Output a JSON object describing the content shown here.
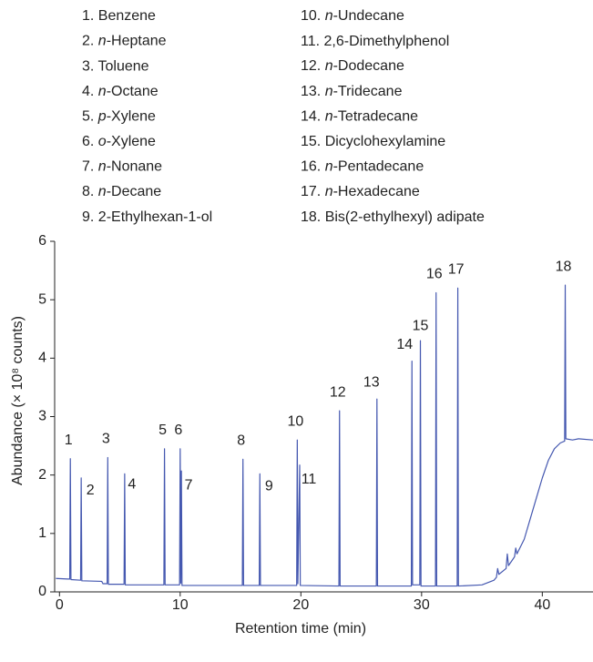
{
  "chart_data": {
    "type": "line",
    "x_label": "Retention time (min)",
    "y_label": "Abundance (× 10⁸ counts)",
    "xlim": [
      -0.4,
      44.2
    ],
    "ylim": [
      0,
      6
    ],
    "xticks": [
      0,
      10,
      20,
      30,
      40
    ],
    "yticks": [
      0,
      1,
      2,
      3,
      4,
      5,
      6
    ],
    "compounds": [
      "1. Benzene",
      "2. n-Heptane",
      "3. Toluene",
      "4. n-Octane",
      "5. p-Xylene",
      "6. o-Xylene",
      "7. n-Nonane",
      "8. n-Decane",
      "9. 2-Ethylhexan-1-ol",
      "10. n-Undecane",
      "11. 2,6-Dimethylphenol",
      "12. n-Dodecane",
      "13. n-Tridecane",
      "14. n-Tetradecane",
      "15. Dicyclohexylamine",
      "16. n-Pentadecane",
      "17. n-Hexadecane",
      "18. Bis(2-ethylhexyl) adipate"
    ],
    "peaks": [
      {
        "text": "1",
        "x": 0.9,
        "y": 2.28
      },
      {
        "text": "2",
        "x": 1.8,
        "y": 1.95
      },
      {
        "text": "3",
        "x": 4.0,
        "y": 2.3
      },
      {
        "text": "4",
        "x": 5.4,
        "y": 2.02
      },
      {
        "text": "5",
        "x": 8.7,
        "y": 2.45
      },
      {
        "text": "6",
        "x": 10.0,
        "y": 2.45
      },
      {
        "text": "7",
        "x": 10.1,
        "y": 2.07
      },
      {
        "text": "8",
        "x": 15.2,
        "y": 2.27
      },
      {
        "text": "9",
        "x": 16.6,
        "y": 2.02
      },
      {
        "text": "10",
        "x": 19.7,
        "y": 2.6
      },
      {
        "text": "11",
        "x": 19.9,
        "y": 2.17
      },
      {
        "text": "12",
        "x": 23.2,
        "y": 3.1
      },
      {
        "text": "13",
        "x": 26.3,
        "y": 3.3
      },
      {
        "text": "14",
        "x": 29.2,
        "y": 3.95
      },
      {
        "text": "15",
        "x": 29.9,
        "y": 4.3
      },
      {
        "text": "16",
        "x": 31.2,
        "y": 5.12
      },
      {
        "text": "17",
        "x": 33.0,
        "y": 5.2
      },
      {
        "text": "18",
        "x": 41.9,
        "y": 5.25
      }
    ],
    "series": [
      {
        "color": "#4558b0",
        "x": [
          -0.3,
          0.7,
          0.85,
          0.9,
          0.95,
          1.75,
          1.8,
          1.85,
          3.5,
          3.6,
          3.95,
          4.0,
          4.05,
          5.35,
          5.4,
          5.45,
          8.65,
          8.7,
          8.75,
          9.95,
          10.0,
          10.05,
          10.1,
          10.15,
          15.15,
          15.2,
          15.25,
          16.55,
          16.6,
          16.65,
          19.65,
          19.7,
          19.75,
          19.9,
          19.95,
          23.15,
          23.2,
          23.25,
          26.25,
          26.3,
          26.35,
          29.15,
          29.2,
          29.25,
          29.85,
          29.9,
          29.95,
          31.15,
          31.2,
          31.25,
          32.95,
          33.0,
          33.05,
          35,
          36,
          36.2,
          36.3,
          36.4,
          37.0,
          37.1,
          37.2,
          37.7,
          37.8,
          37.9,
          38.5,
          39,
          39.5,
          40,
          40.5,
          41,
          41.5,
          41.85,
          41.9,
          41.95,
          42.5,
          43,
          44.2
        ],
        "values": [
          0.23,
          0.22,
          0.22,
          2.28,
          0.21,
          0.2,
          1.95,
          0.19,
          0.18,
          0.14,
          0.14,
          2.3,
          0.13,
          0.13,
          2.02,
          0.12,
          0.12,
          2.45,
          0.12,
          0.12,
          2.45,
          0.15,
          2.07,
          0.11,
          0.11,
          2.27,
          0.11,
          0.11,
          2.02,
          0.11,
          0.11,
          2.6,
          0.14,
          2.17,
          0.11,
          0.1,
          3.1,
          0.1,
          0.1,
          3.3,
          0.1,
          0.1,
          3.95,
          0.12,
          0.12,
          4.3,
          0.1,
          0.1,
          5.12,
          0.1,
          0.1,
          5.2,
          0.1,
          0.12,
          0.2,
          0.25,
          0.4,
          0.3,
          0.4,
          0.65,
          0.45,
          0.6,
          0.75,
          0.65,
          0.9,
          1.25,
          1.6,
          1.95,
          2.25,
          2.45,
          2.55,
          2.58,
          5.25,
          2.62,
          2.6,
          2.62,
          2.6
        ]
      }
    ]
  }
}
